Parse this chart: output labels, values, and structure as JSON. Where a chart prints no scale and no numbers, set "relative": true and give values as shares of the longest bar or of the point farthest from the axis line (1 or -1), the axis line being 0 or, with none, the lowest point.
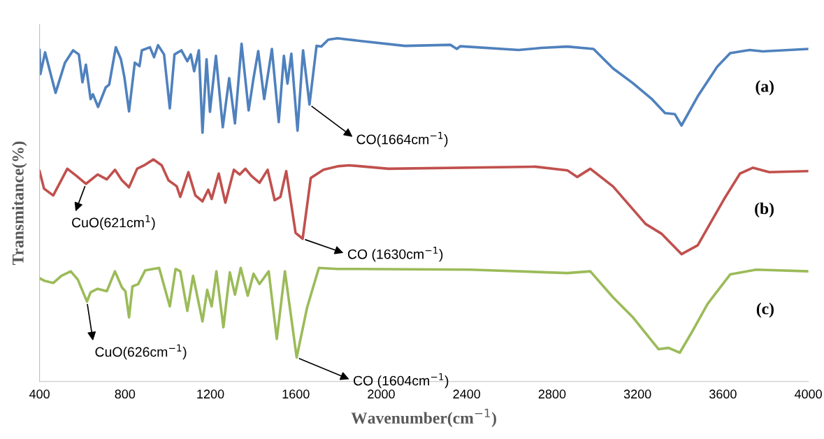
{
  "chart_data": {
    "type": "line",
    "relative": true,
    "xlabel": "Wavenumber(cm$^{−1}$)",
    "ylabel": "Transmitance(%)",
    "xlim": [
      400,
      4000
    ],
    "xticks": [
      400,
      800,
      1200,
      1600,
      2000,
      2400,
      2800,
      3200,
      3600,
      4000
    ],
    "tick_labels": "x",
    "grid": false,
    "legend": false,
    "marker": "none",
    "line_style": "solid",
    "series": [
      {
        "name": "(a)",
        "color": "#4f81bd",
        "x": [
          400,
          404,
          426,
          475,
          519,
          557,
          584,
          601,
          617,
          639,
          650,
          674,
          710,
          726,
          757,
          781,
          797,
          819,
          846,
          868,
          879,
          917,
          936,
          955,
          983,
          1010,
          1032,
          1064,
          1092,
          1108,
          1124,
          1146,
          1163,
          1182,
          1198,
          1226,
          1258,
          1288,
          1315,
          1346,
          1379,
          1402,
          1424,
          1452,
          1488,
          1520,
          1544,
          1561,
          1579,
          1608,
          1634,
          1664,
          1697,
          1719,
          1752,
          1795,
          1850,
          2111,
          2324,
          2354,
          2370,
          2644,
          2750,
          2871,
          2994,
          3086,
          3177,
          3269,
          3329,
          3375,
          3406,
          3482,
          3573,
          3634,
          3725,
          3787,
          4000
        ],
        "values": [
          0.966,
          0.896,
          0.959,
          0.841,
          0.929,
          0.965,
          0.953,
          0.872,
          0.923,
          0.823,
          0.837,
          0.8,
          0.857,
          0.865,
          0.974,
          0.939,
          0.888,
          0.787,
          0.929,
          0.919,
          0.965,
          0.974,
          0.945,
          0.98,
          0.953,
          0.796,
          0.953,
          0.965,
          0.933,
          0.953,
          0.904,
          0.965,
          0.725,
          0.939,
          0.786,
          0.949,
          0.741,
          0.884,
          0.752,
          0.984,
          0.79,
          0.884,
          0.963,
          0.823,
          0.969,
          0.756,
          0.949,
          0.868,
          0.955,
          0.731,
          0.965,
          0.807,
          0.978,
          0.976,
          0.996,
          1.0,
          0.996,
          0.978,
          0.981,
          0.969,
          0.977,
          0.966,
          0.972,
          0.976,
          0.969,
          0.912,
          0.87,
          0.822,
          0.782,
          0.779,
          0.746,
          0.831,
          0.917,
          0.957,
          0.966,
          0.962,
          0.969
        ]
      },
      {
        "name": "(b)",
        "color": "#c0504d",
        "x": [
          400,
          421,
          464,
          530,
          573,
          617,
          672,
          715,
          753,
          786,
          819,
          857,
          890,
          933,
          972,
          1004,
          1042,
          1059,
          1097,
          1130,
          1163,
          1190,
          1206,
          1239,
          1270,
          1310,
          1337,
          1364,
          1392,
          1430,
          1468,
          1501,
          1528,
          1555,
          1599,
          1632,
          1670,
          1730,
          1795,
          1850,
          2034,
          2720,
          2872,
          2918,
          2979,
          3086,
          3238,
          3314,
          3406,
          3482,
          3604,
          3680,
          3741,
          3817,
          4000
        ],
        "values": [
          0.613,
          0.562,
          0.542,
          0.62,
          0.599,
          0.576,
          0.603,
          0.589,
          0.617,
          0.586,
          0.566,
          0.62,
          0.63,
          0.647,
          0.63,
          0.586,
          0.569,
          0.538,
          0.61,
          0.542,
          0.525,
          0.559,
          0.532,
          0.606,
          0.521,
          0.617,
          0.603,
          0.62,
          0.599,
          0.579,
          0.617,
          0.528,
          0.538,
          0.613,
          0.433,
          0.416,
          0.593,
          0.617,
          0.627,
          0.63,
          0.62,
          0.626,
          0.615,
          0.596,
          0.62,
          0.568,
          0.459,
          0.43,
          0.371,
          0.397,
          0.53,
          0.606,
          0.623,
          0.61,
          0.613
        ]
      },
      {
        "name": "(c)",
        "color": "#9bbb59",
        "x": [
          400,
          421,
          464,
          502,
          546,
          579,
          622,
          639,
          672,
          715,
          753,
          786,
          802,
          819,
          835,
          862,
          895,
          960,
          1010,
          1037,
          1059,
          1092,
          1119,
          1163,
          1185,
          1206,
          1228,
          1261,
          1291,
          1315,
          1342,
          1375,
          1402,
          1430,
          1473,
          1511,
          1549,
          1604,
          1653,
          1708,
          1795,
          1850,
          2415,
          2872,
          2979,
          3086,
          3177,
          3269,
          3299,
          3345,
          3398,
          3452,
          3528,
          3634,
          3756,
          4000
        ],
        "values": [
          0.301,
          0.294,
          0.287,
          0.308,
          0.321,
          0.297,
          0.233,
          0.26,
          0.27,
          0.263,
          0.321,
          0.274,
          0.263,
          0.187,
          0.277,
          0.284,
          0.324,
          0.331,
          0.219,
          0.328,
          0.321,
          0.206,
          0.308,
          0.175,
          0.267,
          0.219,
          0.321,
          0.158,
          0.318,
          0.253,
          0.331,
          0.25,
          0.314,
          0.284,
          0.321,
          0.124,
          0.321,
          0.07,
          0.216,
          0.331,
          0.328,
          0.328,
          0.326,
          0.316,
          0.321,
          0.245,
          0.188,
          0.117,
          0.094,
          0.098,
          0.084,
          0.141,
          0.226,
          0.312,
          0.326,
          0.321
        ]
      }
    ],
    "annotations": [
      {
        "text": "CO(1664cm$^{−1}$)",
        "x": 1664,
        "y": 0.807
      },
      {
        "text": "CuO(621cm$^{1}$)",
        "x": 617,
        "y": 0.576
      },
      {
        "text": "CO (1630cm$^{−1}$)",
        "x": 1632,
        "y": 0.416
      },
      {
        "text": "CuO(626cm$^{−1}$)",
        "x": 622,
        "y": 0.233
      },
      {
        "text": "CO (1604cm$^{−1}$)",
        "x": 1604,
        "y": 0.07
      }
    ]
  }
}
